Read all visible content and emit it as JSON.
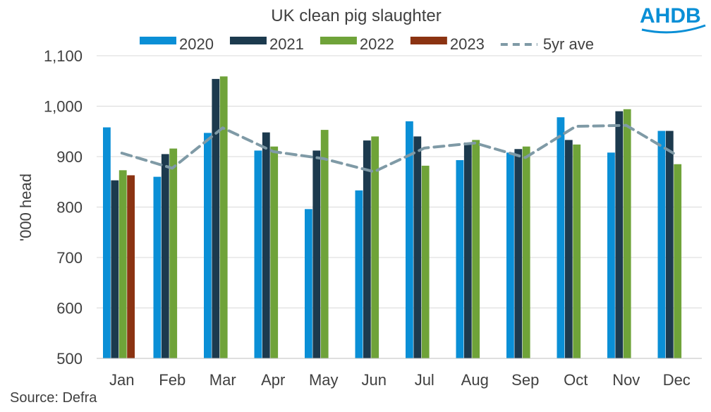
{
  "chart_data": {
    "type": "bar",
    "title": "UK clean pig slaughter",
    "ylabel": "'000 head",
    "xlabel": "",
    "ylim": [
      500,
      1100
    ],
    "yticks": [
      "500",
      "600",
      "700",
      "800",
      "900",
      "1,000",
      "1,100"
    ],
    "ytick_values": [
      500,
      600,
      700,
      800,
      900,
      1000,
      1100
    ],
    "grid": true,
    "legend_position": "top",
    "categories": [
      "Jan",
      "Feb",
      "Mar",
      "Apr",
      "May",
      "Jun",
      "Jul",
      "Aug",
      "Sep",
      "Oct",
      "Nov",
      "Dec"
    ],
    "series": [
      {
        "name": "2020",
        "type": "bar",
        "color": "#0a8fd6",
        "values": [
          958,
          860,
          947,
          912,
          796,
          833,
          970,
          893,
          908,
          978,
          908,
          951
        ]
      },
      {
        "name": "2021",
        "type": "bar",
        "color": "#1c3a4e",
        "values": [
          853,
          905,
          1054,
          948,
          912,
          932,
          940,
          928,
          915,
          933,
          990,
          951
        ]
      },
      {
        "name": "2022",
        "type": "bar",
        "color": "#6fa339",
        "values": [
          873,
          916,
          1059,
          920,
          953,
          940,
          882,
          933,
          920,
          924,
          994,
          885
        ]
      },
      {
        "name": "2023",
        "type": "bar",
        "color": "#8b3312",
        "values": [
          863,
          null,
          null,
          null,
          null,
          null,
          null,
          null,
          null,
          null,
          null,
          null
        ]
      },
      {
        "name": "5yr ave",
        "type": "line",
        "style": "dashed",
        "color": "#7f9aa6",
        "values": [
          907,
          877,
          957,
          910,
          896,
          870,
          917,
          927,
          898,
          960,
          962,
          903
        ]
      }
    ],
    "source": "Source: Defra"
  },
  "brand": {
    "logo_text": "AHDB",
    "color": "#0a8fd6"
  }
}
